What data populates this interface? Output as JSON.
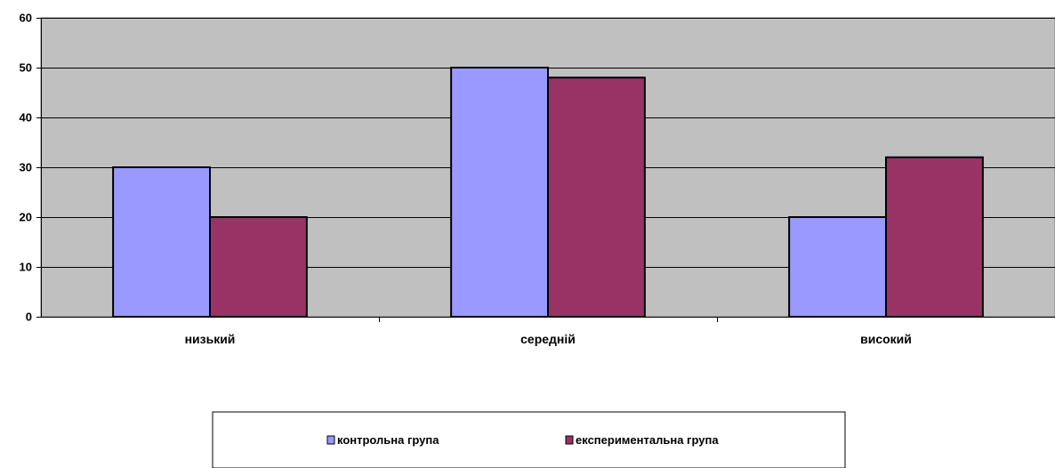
{
  "chart_data": {
    "type": "bar",
    "categories": [
      "низький",
      "середній",
      "високий"
    ],
    "series": [
      {
        "name": "контрольна група",
        "values": [
          30,
          50,
          20
        ],
        "color": "#9999FF"
      },
      {
        "name": "експериментальна група",
        "values": [
          20,
          48,
          32
        ],
        "color": "#993366"
      }
    ],
    "ylim": [
      0,
      60
    ],
    "yticks": [
      0,
      10,
      20,
      30,
      40,
      50,
      60
    ],
    "grid": true,
    "plot_background": "#C0C0C0",
    "legend_position": "bottom"
  }
}
